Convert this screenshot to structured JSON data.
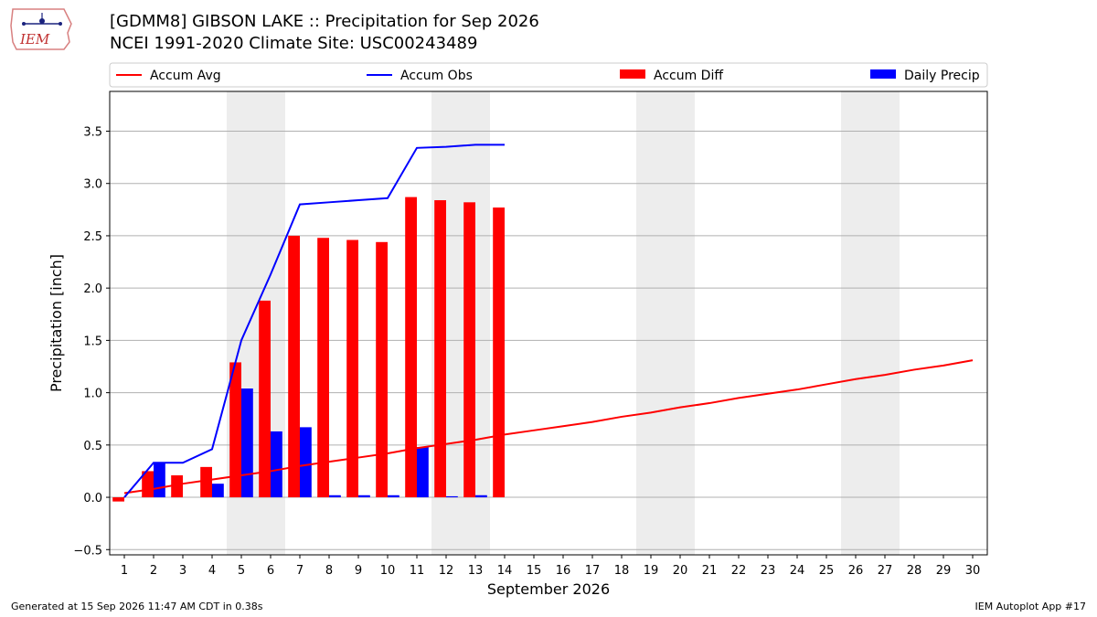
{
  "header": {
    "title_line1": "[GDMM8] GIBSON LAKE :: Precipitation for Sep 2026",
    "title_line2": "NCEI 1991-2020 Climate Site: USC00243489",
    "logo_text": "IEM"
  },
  "footer": {
    "generated": "Generated at 15 Sep 2026 11:47 AM CDT in 0.38s",
    "app": "IEM Autoplot App #17"
  },
  "chart_data": {
    "type": "bar",
    "xlabel": "September 2026",
    "ylabel": "Precipitation [inch]",
    "xlim": [
      0.5,
      30.5
    ],
    "ylim": [
      -0.55,
      3.88
    ],
    "yticks": [
      -0.5,
      0.0,
      0.5,
      1.0,
      1.5,
      2.0,
      2.5,
      3.0,
      3.5
    ],
    "ytick_labels": [
      "−0.5",
      "0.0",
      "0.5",
      "1.0",
      "1.5",
      "2.0",
      "2.5",
      "3.0",
      "3.5"
    ],
    "x": [
      1,
      2,
      3,
      4,
      5,
      6,
      7,
      8,
      9,
      10,
      11,
      12,
      13,
      14,
      15,
      16,
      17,
      18,
      19,
      20,
      21,
      22,
      23,
      24,
      25,
      26,
      27,
      28,
      29,
      30
    ],
    "x_labels": [
      "1",
      "2",
      "3",
      "4",
      "5",
      "6",
      "7",
      "8",
      "9",
      "10",
      "11",
      "12",
      "13",
      "14",
      "15",
      "16",
      "17",
      "18",
      "19",
      "20",
      "21",
      "22",
      "23",
      "24",
      "25",
      "26",
      "27",
      "28",
      "29",
      "30"
    ],
    "weekend_days": [
      5,
      6,
      12,
      13,
      19,
      20,
      26,
      27
    ],
    "grid": "horizontal",
    "legend_position": "top",
    "series": [
      {
        "name": "Accum Avg",
        "kind": "line",
        "color": "#ff0000",
        "x": [
          1,
          2,
          3,
          4,
          5,
          6,
          7,
          8,
          9,
          10,
          11,
          12,
          13,
          14,
          15,
          16,
          17,
          18,
          19,
          20,
          21,
          22,
          23,
          24,
          25,
          26,
          27,
          28,
          29,
          30
        ],
        "values": [
          0.04,
          0.08,
          0.13,
          0.17,
          0.21,
          0.25,
          0.3,
          0.34,
          0.38,
          0.42,
          0.47,
          0.51,
          0.55,
          0.6,
          0.64,
          0.68,
          0.72,
          0.77,
          0.81,
          0.86,
          0.9,
          0.95,
          0.99,
          1.03,
          1.08,
          1.13,
          1.17,
          1.22,
          1.26,
          1.31
        ]
      },
      {
        "name": "Accum Obs",
        "kind": "line",
        "color": "#0000ff",
        "x": [
          1,
          2,
          3,
          4,
          5,
          6,
          7,
          8,
          9,
          10,
          11,
          12,
          13,
          14
        ],
        "values": [
          0.0,
          0.33,
          0.33,
          0.46,
          1.5,
          2.13,
          2.8,
          2.82,
          2.84,
          2.86,
          3.34,
          3.35,
          3.37,
          3.37
        ]
      },
      {
        "name": "Accum Diff",
        "kind": "bar",
        "color": "#ff0000",
        "x": [
          1,
          2,
          3,
          4,
          5,
          6,
          7,
          8,
          9,
          10,
          11,
          12,
          13,
          14
        ],
        "values": [
          -0.04,
          0.25,
          0.21,
          0.29,
          1.29,
          1.88,
          2.5,
          2.48,
          2.46,
          2.44,
          2.87,
          2.84,
          2.82,
          2.77
        ]
      },
      {
        "name": "Daily Precip",
        "kind": "bar",
        "color": "#0000ff",
        "x": [
          1,
          2,
          3,
          4,
          5,
          6,
          7,
          8,
          9,
          10,
          11,
          12,
          13,
          14
        ],
        "values": [
          0.0,
          0.33,
          0.0,
          0.13,
          1.04,
          0.63,
          0.67,
          0.02,
          0.02,
          0.02,
          0.48,
          0.01,
          0.02,
          0.0
        ]
      }
    ]
  }
}
